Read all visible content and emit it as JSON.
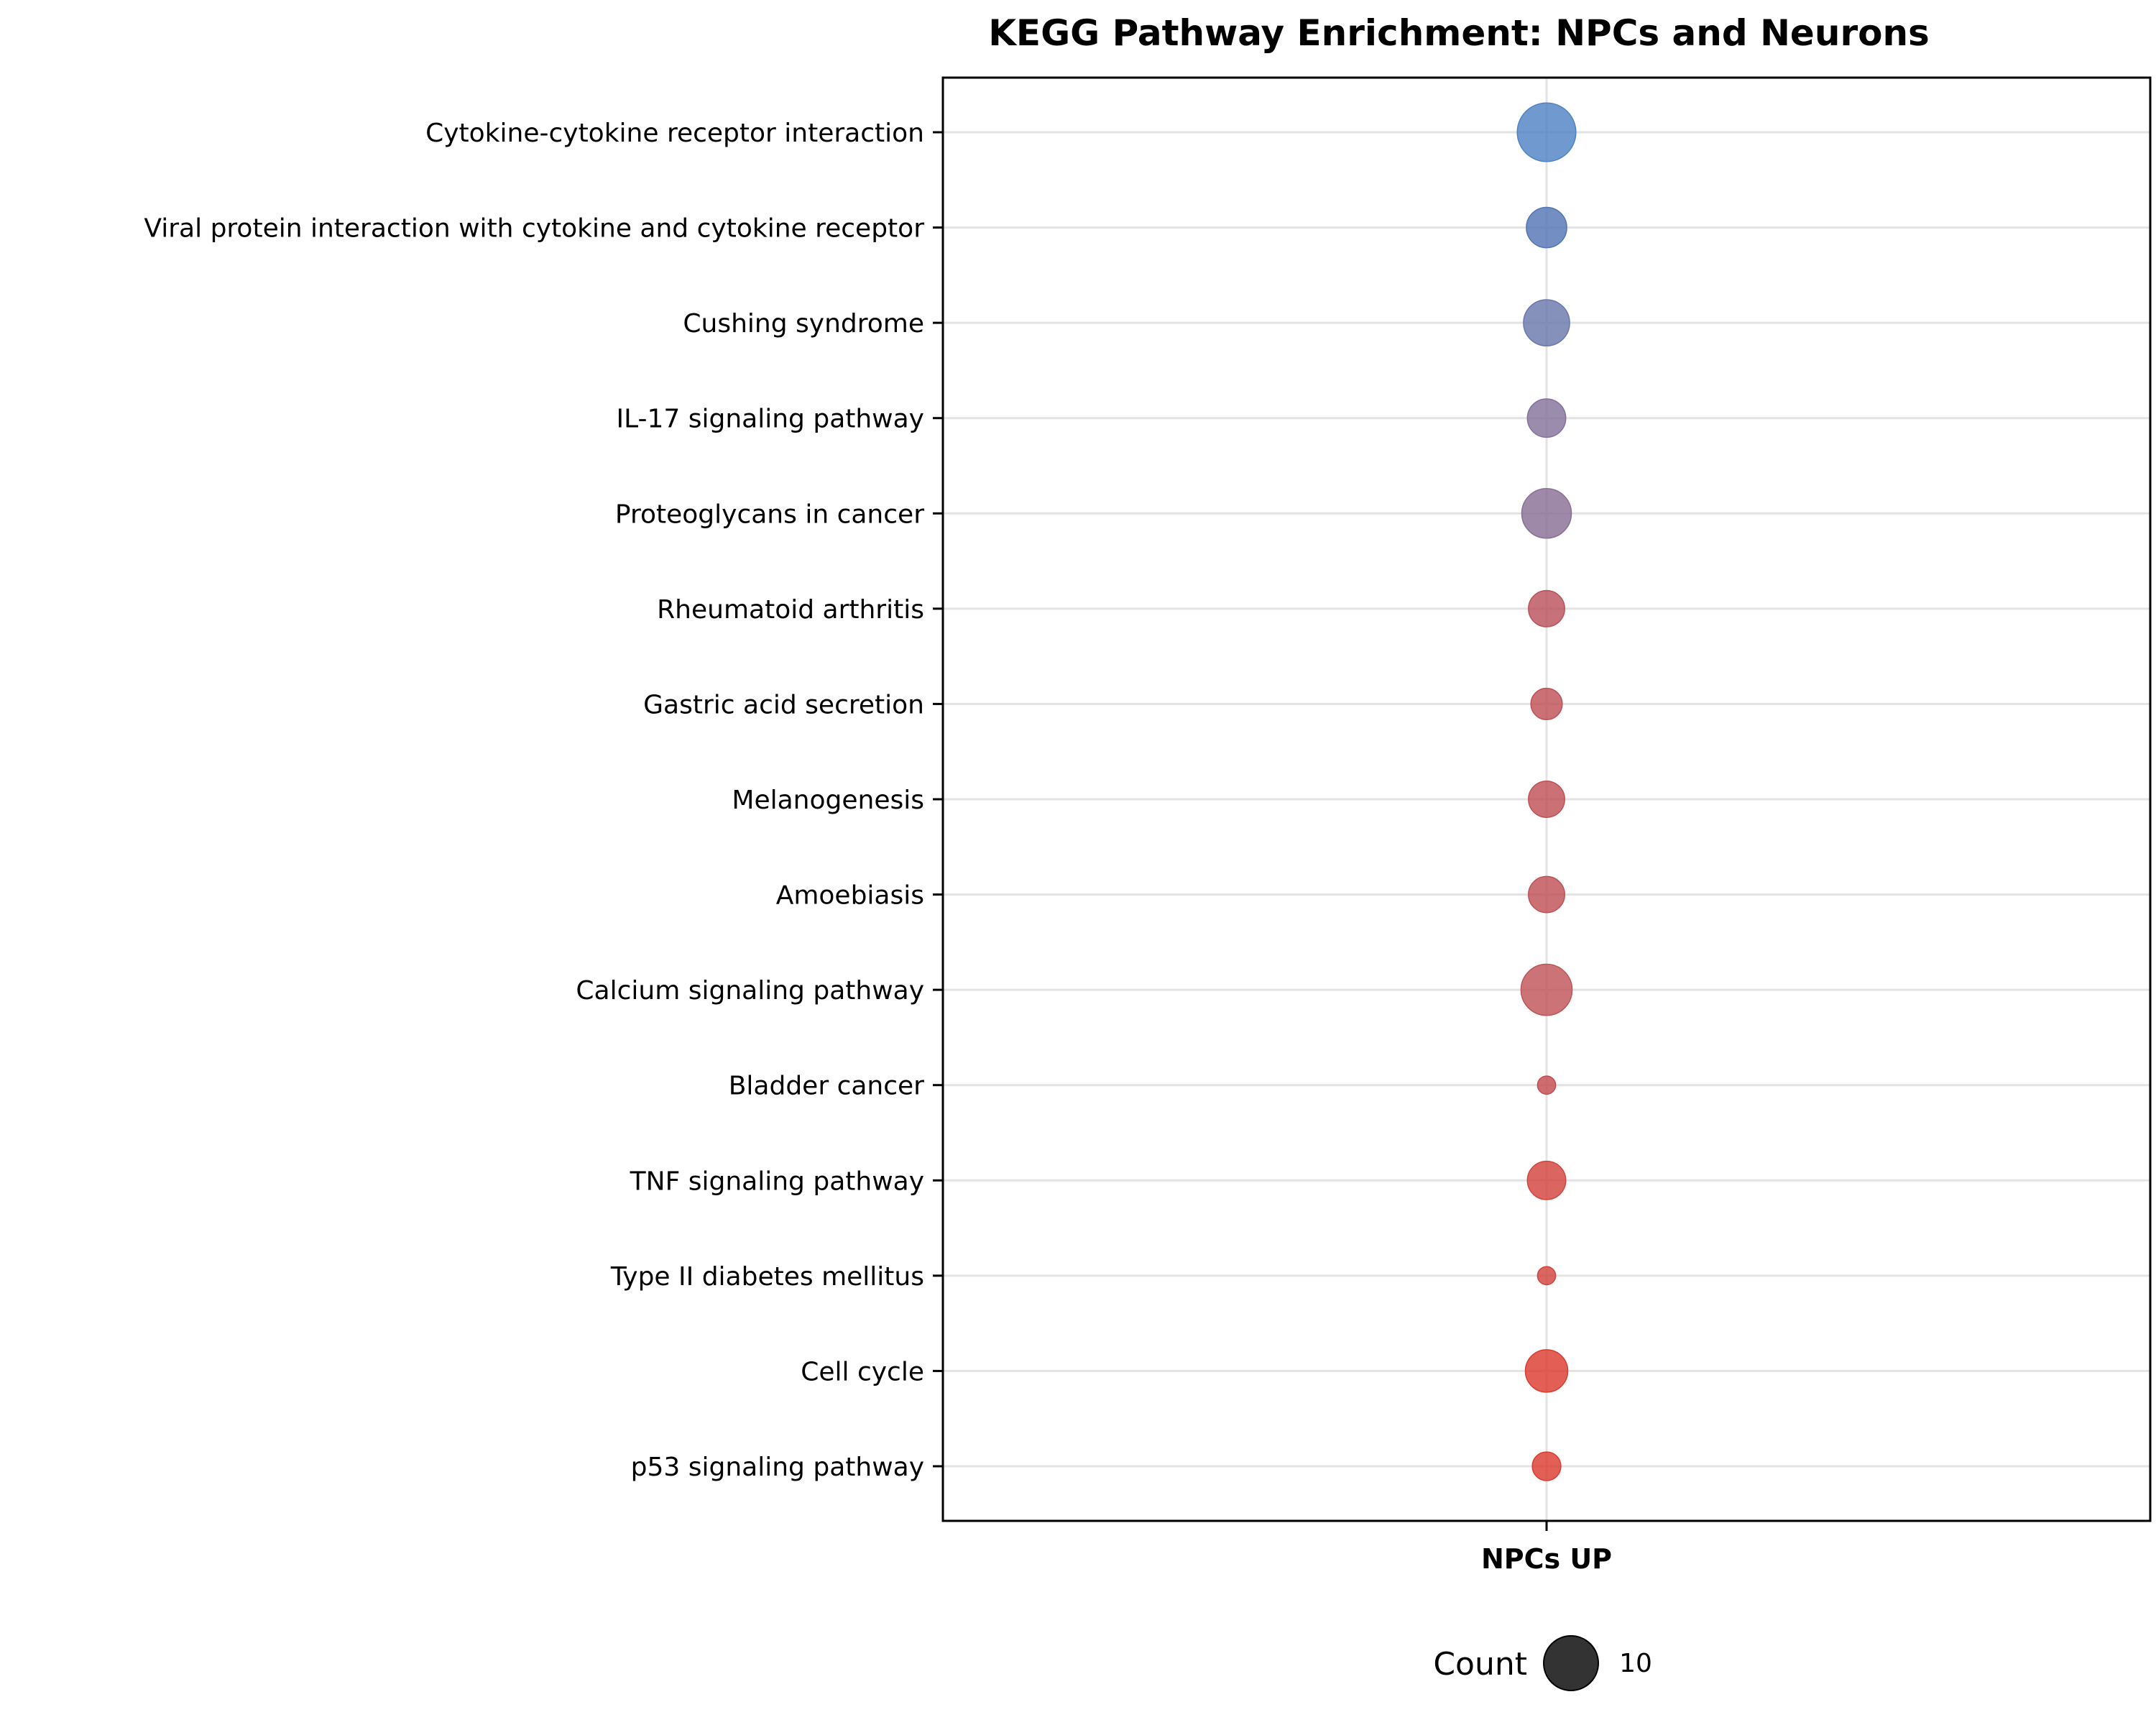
{
  "chart_data": {
    "type": "scatter",
    "title": "KEGG Pathway Enrichment: NPCs and Neurons",
    "x_categories": [
      "NPCs UP"
    ],
    "xlabel": "",
    "ylabel": "",
    "grid": true,
    "legend": {
      "title": "Count",
      "placement": "bottom-center",
      "entries": [
        {
          "label": "10",
          "value": 10
        }
      ]
    },
    "points": [
      {
        "pathway": "Cytokine-cytokine receptor interaction",
        "group": "NPCs UP",
        "count": 21,
        "color": "#4f83c4"
      },
      {
        "pathway": "Viral protein interaction with cytokine and cytokine receptor",
        "group": "NPCs UP",
        "count": 10,
        "color": "#5475b5"
      },
      {
        "pathway": "Cushing syndrome",
        "group": "NPCs UP",
        "count": 13,
        "color": "#6a78ac"
      },
      {
        "pathway": "IL-17 signaling pathway",
        "group": "NPCs UP",
        "count": 9,
        "color": "#85719b"
      },
      {
        "pathway": "Proteoglycans in cancer",
        "group": "NPCs UP",
        "count": 15,
        "color": "#896f95"
      },
      {
        "pathway": "Rheumatoid arthritis",
        "group": "NPCs UP",
        "count": 8,
        "color": "#bb535d"
      },
      {
        "pathway": "Gastric acid secretion",
        "group": "NPCs UP",
        "count": 6,
        "color": "#bf5157"
      },
      {
        "pathway": "Melanogenesis",
        "group": "NPCs UP",
        "count": 8,
        "color": "#bf5157"
      },
      {
        "pathway": "Amoebiasis",
        "group": "NPCs UP",
        "count": 8,
        "color": "#bf5157"
      },
      {
        "pathway": "Calcium signaling pathway",
        "group": "NPCs UP",
        "count": 16,
        "color": "#c05458"
      },
      {
        "pathway": "Bladder cancer",
        "group": "NPCs UP",
        "count": 2,
        "color": "#c44c50"
      },
      {
        "pathway": "TNF signaling pathway",
        "group": "NPCs UP",
        "count": 9,
        "color": "#d3443e"
      },
      {
        "pathway": "Type II diabetes mellitus",
        "group": "NPCs UP",
        "count": 2,
        "color": "#d3443e"
      },
      {
        "pathway": "Cell cycle",
        "group": "NPCs UP",
        "count": 11,
        "color": "#dc3c30"
      },
      {
        "pathway": "p53 signaling pathway",
        "group": "NPCs UP",
        "count": 5,
        "color": "#dc3c30"
      }
    ]
  }
}
